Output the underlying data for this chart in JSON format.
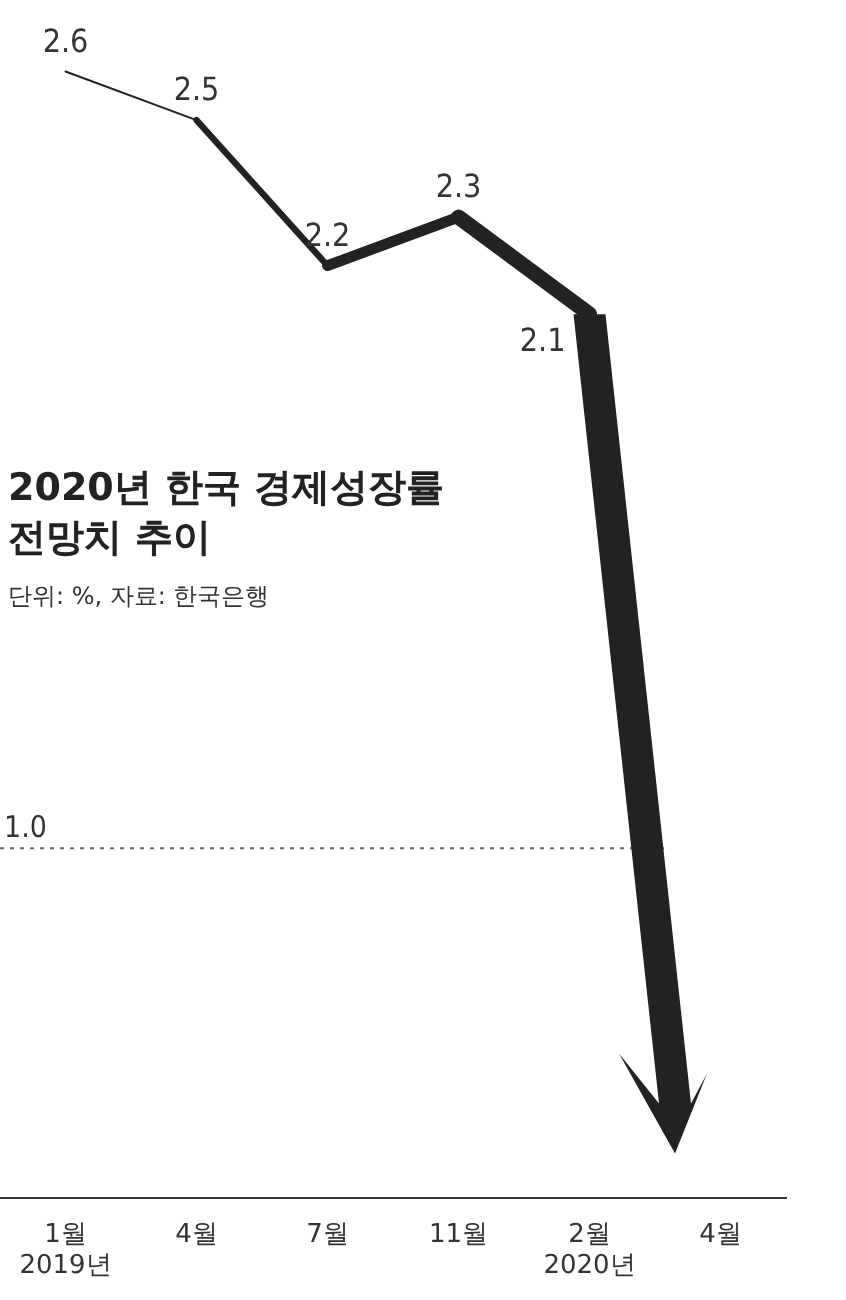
{
  "chart_data": {
    "type": "line",
    "title": "2020년 한국 경제성장률\n전망치 추이",
    "subtitle": "단위: %, 자료: 한국은행",
    "categories": [
      "1월\n2019년",
      "4월",
      "7월",
      "11월",
      "2월\n2020년",
      "4월"
    ],
    "series": [
      {
        "color": "#222222",
        "values": [
          2.6,
          2.5,
          2.2,
          2.3,
          2.1,
          null
        ]
      }
    ],
    "data_labels": true,
    "grid": false,
    "legend": false,
    "marker": "none",
    "line_style": "solid",
    "tick_labels": "x",
    "ref_lines": [
      {
        "axis": "y",
        "value": 1.0,
        "label": "1.0",
        "color": "#666666",
        "line_style": "dotted"
      }
    ]
  }
}
